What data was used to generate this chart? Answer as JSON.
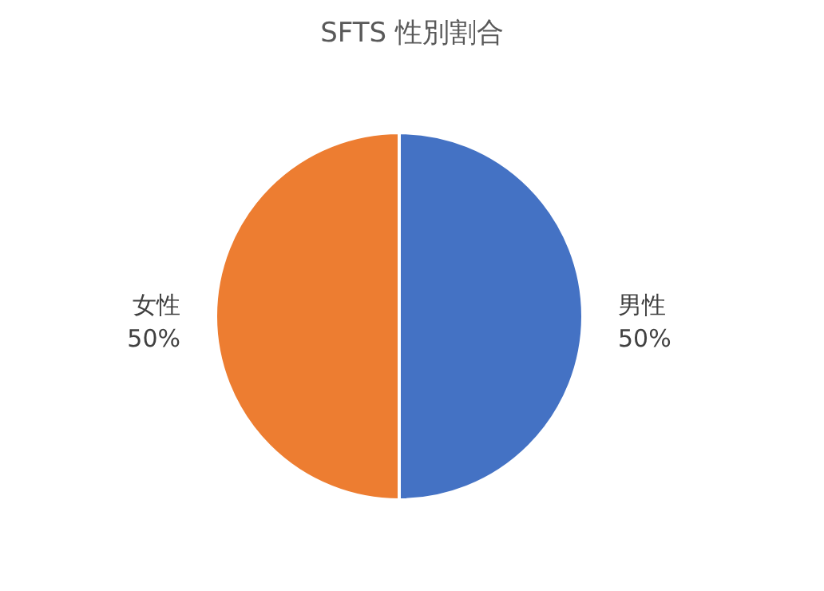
{
  "chart_data": {
    "type": "pie",
    "title": "SFTS 性別割合",
    "categories": [
      "男性",
      "女性"
    ],
    "values": [
      50,
      50
    ],
    "colors": [
      "#4472c4",
      "#ed7d31"
    ],
    "value_labels": [
      "50%",
      "50%"
    ]
  }
}
